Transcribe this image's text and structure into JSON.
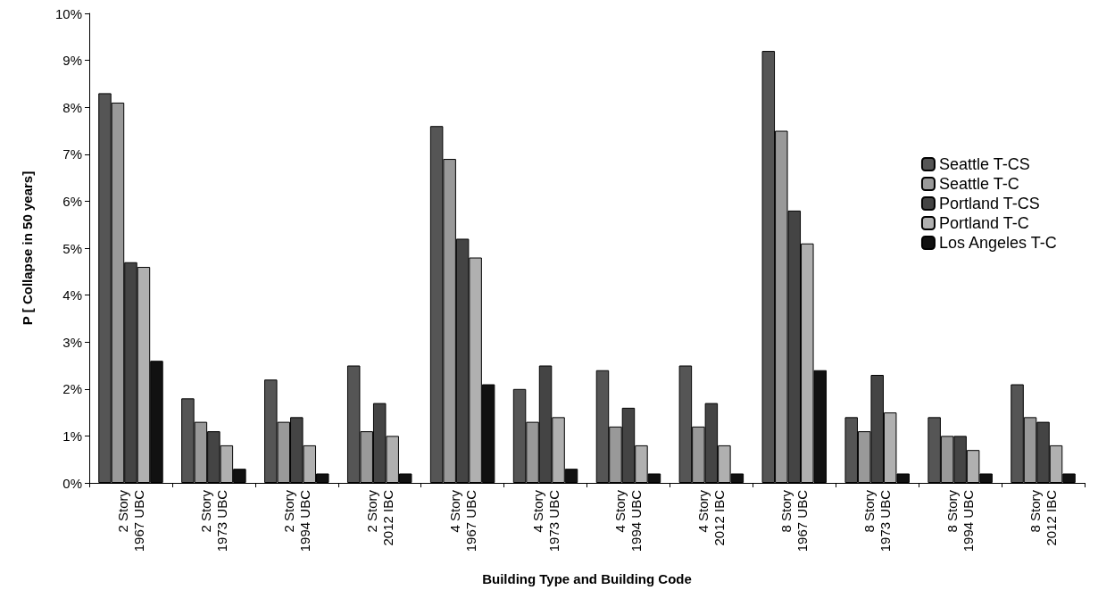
{
  "chart_data": {
    "type": "bar",
    "xlabel": "Building Type and Building Code",
    "ylabel": "P [ Collapse in 50 years]",
    "categories": [
      "2 Story\n1967 UBC",
      "2 Story\n1973 UBC",
      "2 Story\n1994 UBC",
      "2 Story\n2012 IBC",
      "4 Story\n1967 UBC",
      "4 Story\n1973 UBC",
      "4 Story\n1994 UBC",
      "4 Story\n2012 IBC",
      "8 Story\n1967 UBC",
      "8 Story\n1973 UBC",
      "8 Story\n1994 UBC",
      "8 Story\n2012 IBC"
    ],
    "series": [
      {
        "name": "Seattle T-CS",
        "color": "#555555",
        "values": [
          8.3,
          1.8,
          2.2,
          2.5,
          7.6,
          2.0,
          2.4,
          2.5,
          9.2,
          1.4,
          1.4,
          2.1
        ]
      },
      {
        "name": "Seattle T-C",
        "color": "#999999",
        "values": [
          8.1,
          1.3,
          1.3,
          1.1,
          6.9,
          1.3,
          1.2,
          1.2,
          7.5,
          1.1,
          1.0,
          1.4
        ]
      },
      {
        "name": "Portland T-CS",
        "color": "#444444",
        "values": [
          4.7,
          1.1,
          1.4,
          1.7,
          5.2,
          2.5,
          1.6,
          1.7,
          5.8,
          2.3,
          1.0,
          1.3
        ]
      },
      {
        "name": "Portland T-C",
        "color": "#b0b0b0",
        "values": [
          4.6,
          0.8,
          0.8,
          1.0,
          4.8,
          1.4,
          0.8,
          0.8,
          5.1,
          1.5,
          0.7,
          0.8
        ]
      },
      {
        "name": "Los Angeles T-C",
        "color": "#111111",
        "values": [
          2.6,
          0.3,
          0.2,
          0.2,
          2.1,
          0.3,
          0.2,
          0.2,
          2.4,
          0.2,
          0.2,
          0.2
        ]
      }
    ],
    "ylim": [
      0,
      10
    ],
    "yticks": [
      {
        "value": 0,
        "label": "0%"
      },
      {
        "value": 1,
        "label": "1%"
      },
      {
        "value": 2,
        "label": "2%"
      },
      {
        "value": 3,
        "label": "3%"
      },
      {
        "value": 4,
        "label": "4%"
      },
      {
        "value": 5,
        "label": "5%"
      },
      {
        "value": 6,
        "label": "6%"
      },
      {
        "value": 7,
        "label": "7%"
      },
      {
        "value": 8,
        "label": "8%"
      },
      {
        "value": 9,
        "label": "9%"
      },
      {
        "value": 10,
        "label": "10%"
      }
    ],
    "grid": false,
    "legend": "right"
  }
}
